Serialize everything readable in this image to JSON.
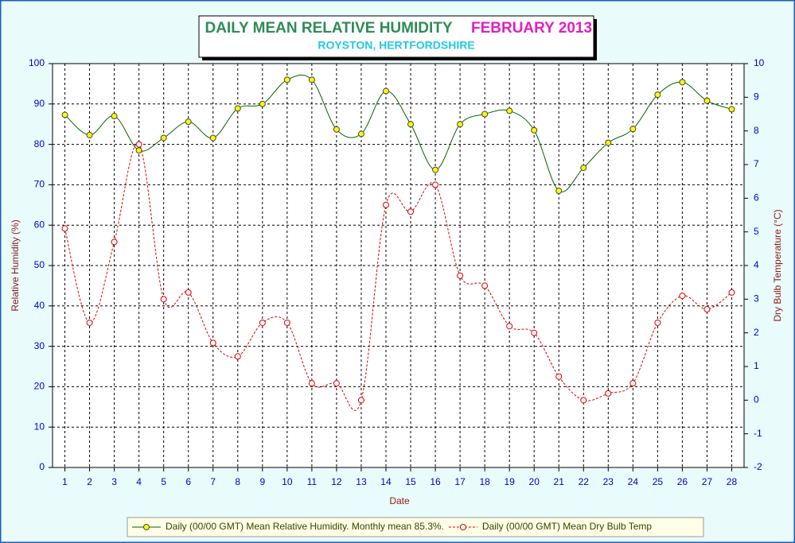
{
  "chart_data": {
    "type": "line",
    "title": "DAILY MEAN RELATIVE HUMIDITY",
    "title_date": "FEBRUARY 2013",
    "subtitle": "ROYSTON, HERTFORDSHIRE",
    "xlabel": "Date",
    "ylabel": "Relative Humidity (%)",
    "y2label": "Dry Bulb Temperature (°C)",
    "categories": [
      "1",
      "2",
      "3",
      "4",
      "5",
      "6",
      "7",
      "8",
      "9",
      "10",
      "11",
      "12",
      "13",
      "14",
      "15",
      "16",
      "17",
      "18",
      "19",
      "20",
      "21",
      "22",
      "23",
      "24",
      "25",
      "26",
      "27",
      "28"
    ],
    "ylim": [
      0,
      100
    ],
    "yticks": [
      0,
      10,
      20,
      30,
      40,
      50,
      60,
      70,
      80,
      90,
      100
    ],
    "y2lim": [
      -2,
      10
    ],
    "y2ticks": [
      -2,
      -1,
      0,
      1,
      2,
      3,
      4,
      5,
      6,
      7,
      8,
      9,
      10
    ],
    "grid": true,
    "series": [
      {
        "name": "Daily (00/00 GMT) Mean Relative Humidity. Monthly mean 85.3%.",
        "color": "#006400",
        "marker_color": "#ffff00",
        "values": [
          87.3,
          82.3,
          87,
          78.5,
          81.6,
          85.6,
          81.6,
          88.9,
          90,
          96,
          96,
          83.7,
          82.6,
          93.2,
          85,
          73.7,
          85,
          87.5,
          88.3,
          83.5,
          68.5,
          74.2,
          80.4,
          83.8,
          92.3,
          95.4,
          90.8,
          88.7
        ]
      },
      {
        "name": "Daily (00/00 GMT) Mean Dry Bulb Temp",
        "color": "#dd0000",
        "marker_color": "#ffffff",
        "axis": "y2",
        "dashed": true,
        "values": [
          5.1,
          2.3,
          4.7,
          7.6,
          3.0,
          3.2,
          1.7,
          1.3,
          2.3,
          2.3,
          0.5,
          0.5,
          0.0,
          5.8,
          5.6,
          6.4,
          3.7,
          3.4,
          2.2,
          2.0,
          0.7,
          0.0,
          0.2,
          0.5,
          2.3,
          3.1,
          2.7,
          3.2
        ]
      }
    ]
  }
}
